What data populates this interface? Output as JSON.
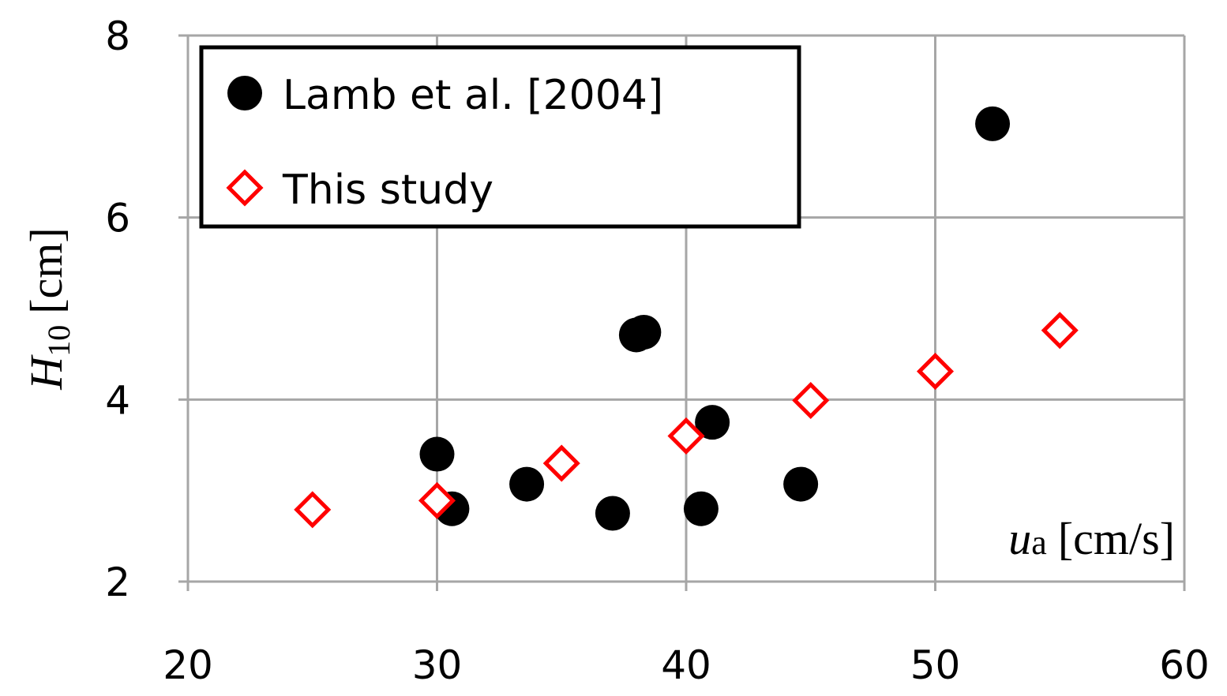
{
  "chart_data": {
    "type": "scatter",
    "xlabel": {
      "symbol": "u",
      "subscript": "a",
      "unit": "[cm/s]"
    },
    "ylabel": {
      "symbol": "H",
      "subscript": "10",
      "unit": "[cm]"
    },
    "xlim": [
      20,
      60
    ],
    "xticks": [
      20,
      30,
      40,
      50,
      60
    ],
    "ylim": [
      2,
      8
    ],
    "yticks": [
      2,
      4,
      6,
      8
    ],
    "grid": true,
    "legend": "upper left",
    "series": [
      {
        "name": "Lamb et al. [2004]",
        "color": "#000000",
        "marker": "circle",
        "x": [
          30.0,
          30.6,
          33.6,
          37.05,
          38.0,
          38.3,
          40.6,
          41.05,
          44.6,
          52.3
        ],
        "values": [
          3.4,
          2.8,
          3.07,
          2.75,
          4.71,
          4.74,
          2.8,
          3.75,
          3.07,
          7.03
        ]
      },
      {
        "name": "This study",
        "color": "#ff0000",
        "marker": "diamond",
        "x": [
          25,
          30,
          35,
          40,
          45,
          50,
          55
        ],
        "values": [
          2.79,
          2.89,
          3.3,
          3.6,
          3.99,
          4.31,
          4.76
        ]
      }
    ]
  }
}
